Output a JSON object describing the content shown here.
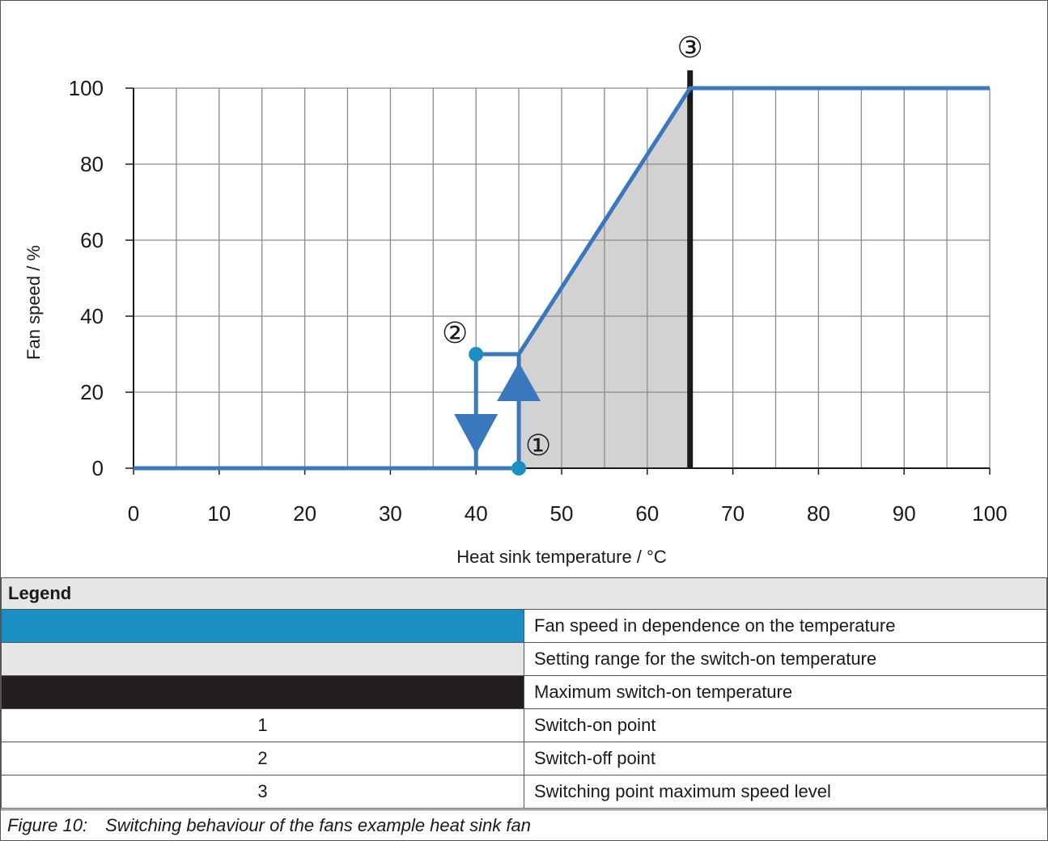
{
  "chart_data": {
    "type": "line",
    "xlabel": "Heat sink temperature / °C",
    "ylabel": "Fan speed / %",
    "xlim": [
      0,
      100
    ],
    "ylim": [
      0,
      100
    ],
    "x_ticks": [
      0,
      10,
      20,
      30,
      40,
      50,
      60,
      70,
      80,
      90,
      100
    ],
    "y_ticks": [
      0,
      20,
      40,
      60,
      80,
      100
    ],
    "grid": true,
    "series": [
      {
        "name": "Fan speed in dependence on the temperature",
        "color": "#3a78bd",
        "points": [
          [
            0,
            0
          ],
          [
            40,
            0
          ],
          [
            45,
            0
          ],
          [
            45,
            30
          ],
          [
            65,
            100
          ],
          [
            100,
            100
          ]
        ]
      }
    ],
    "hysteresis": {
      "switch_on": {
        "x": 45,
        "y": 0
      },
      "switch_off": {
        "x": 40,
        "y": 30
      },
      "upper_segment": [
        [
          40,
          30
        ],
        [
          45,
          30
        ]
      ],
      "down_arrow_x": 40,
      "up_arrow_x": 45
    },
    "shaded_region": {
      "name": "Setting range for the switch-on temperature",
      "color": "#d2d2d2",
      "polygon": [
        [
          45,
          0
        ],
        [
          45,
          30
        ],
        [
          65,
          100
        ],
        [
          65,
          0
        ]
      ]
    },
    "vertical_line": {
      "name": "Maximum switch-on temperature",
      "x": 65,
      "color": "#1a1a1a"
    },
    "markers": [
      {
        "label": "①",
        "x": 45,
        "y": 0
      },
      {
        "label": "②",
        "x": 40,
        "y": 30
      },
      {
        "label": "③",
        "x": 65,
        "y": 100
      }
    ]
  },
  "legend": {
    "title": "Legend",
    "rows": [
      {
        "key": "",
        "swatch": "#1b8fc4",
        "text": "Fan speed in dependence on the temperature"
      },
      {
        "key": "",
        "swatch": "#e6e6e6",
        "text": "Setting range for the switch-on temperature"
      },
      {
        "key": "",
        "swatch": "#231f20",
        "text": "Maximum switch-on temperature"
      },
      {
        "key": "1",
        "swatch": "",
        "text": "Switch-on point"
      },
      {
        "key": "2",
        "swatch": "",
        "text": "Switch-off point"
      },
      {
        "key": "3",
        "swatch": "",
        "text": "Switching point maximum speed level"
      }
    ]
  },
  "caption": {
    "label": "Figure 10:",
    "text": "Switching behaviour of the fans example heat sink fan"
  }
}
